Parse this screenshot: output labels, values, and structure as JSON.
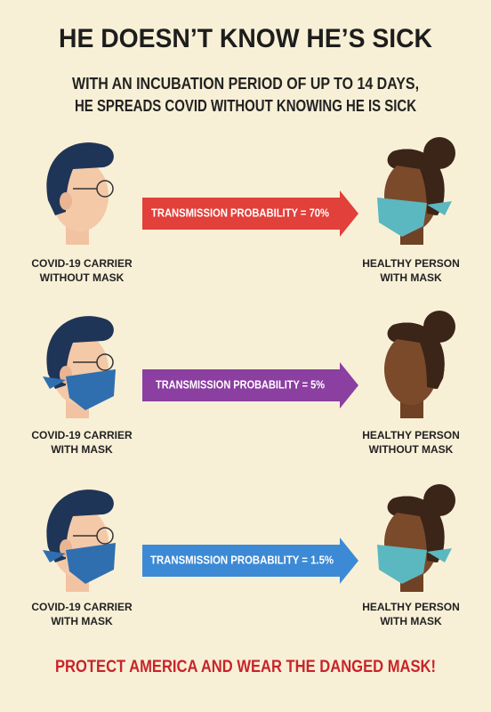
{
  "header": {
    "title": "HE DOESN’T KNOW HE’S SICK",
    "subtitle": [
      "WITH AN INCUBATION PERIOD OF UP TO 14 DAYS,",
      "HE SPREADS COVID WITHOUT KNOWING HE IS SICK"
    ]
  },
  "rows": [
    {
      "left": [
        "COVID-19 CARRIER",
        "WITHOUT MASK"
      ],
      "arrow": "TRANSMISSION PROBABILITY = 70%",
      "right": [
        "HEALTHY PERSON",
        "WITH MASK"
      ]
    },
    {
      "left": [
        "COVID-19 CARRIER",
        "WITH MASK"
      ],
      "arrow": "TRANSMISSION PROBABILITY = 5%",
      "right": [
        "HEALTHY PERSON",
        "WITHOUT MASK"
      ]
    },
    {
      "left": [
        "COVID-19 CARRIER",
        "WITH MASK"
      ],
      "arrow": "TRANSMISSION PROBABILITY = 1.5%",
      "right": [
        "HEALTHY PERSON",
        "WITH MASK"
      ]
    }
  ],
  "footer": "PROTECT AMERICA AND WEAR THE DANGED MASK!"
}
